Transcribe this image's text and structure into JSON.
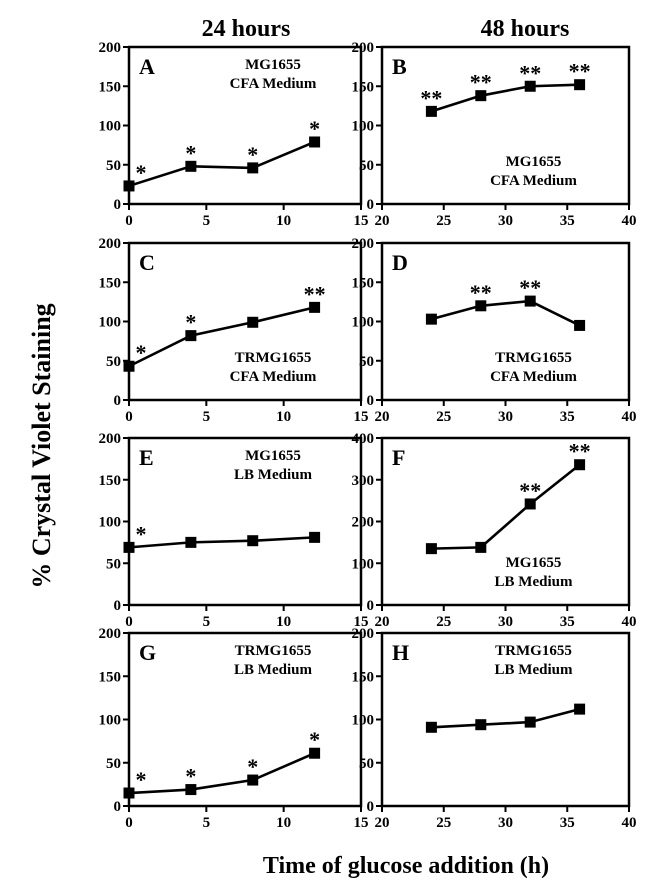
{
  "headers": {
    "left": "24 hours",
    "right": "48 hours"
  },
  "y_axis_label": "% Crystal Violet Staining",
  "x_axis_label": "Time of glucose addition (h)",
  "chart_data": [
    {
      "type": "line",
      "panel": "A",
      "column": "24 hours",
      "strain": "MG1655",
      "medium": "CFA Medium",
      "x": [
        0,
        4,
        8,
        12
      ],
      "y": [
        23,
        48,
        46,
        79
      ],
      "significance": [
        "*",
        "*",
        "*",
        "*"
      ],
      "xlim": [
        0,
        15
      ],
      "ylim": [
        0,
        200
      ],
      "xticks": [
        0,
        5,
        10,
        15
      ],
      "yticks": [
        0,
        50,
        100,
        150,
        200
      ]
    },
    {
      "type": "line",
      "panel": "B",
      "column": "48 hours",
      "strain": "MG1655",
      "medium": "CFA Medium",
      "x": [
        24,
        28,
        32,
        36
      ],
      "y": [
        118,
        138,
        150,
        152
      ],
      "significance": [
        "**",
        "**",
        "**",
        "**"
      ],
      "xlim": [
        20,
        40
      ],
      "ylim": [
        0,
        200
      ],
      "xticks": [
        20,
        25,
        30,
        35,
        40
      ],
      "yticks": [
        0,
        50,
        100,
        150,
        200
      ]
    },
    {
      "type": "line",
      "panel": "C",
      "column": "24 hours",
      "strain": "TRMG1655",
      "medium": "CFA Medium",
      "x": [
        0,
        4,
        8,
        12
      ],
      "y": [
        43,
        82,
        99,
        118
      ],
      "significance": [
        "*",
        "*",
        "",
        "**"
      ],
      "xlim": [
        0,
        15
      ],
      "ylim": [
        0,
        200
      ],
      "xticks": [
        0,
        5,
        10,
        15
      ],
      "yticks": [
        0,
        50,
        100,
        150,
        200
      ]
    },
    {
      "type": "line",
      "panel": "D",
      "column": "48 hours",
      "strain": "TRMG1655",
      "medium": "CFA Medium",
      "x": [
        24,
        28,
        32,
        36
      ],
      "y": [
        103,
        120,
        126,
        95
      ],
      "significance": [
        "",
        "**",
        "**",
        ""
      ],
      "xlim": [
        20,
        40
      ],
      "ylim": [
        0,
        200
      ],
      "xticks": [
        20,
        25,
        30,
        35,
        40
      ],
      "yticks": [
        0,
        50,
        100,
        150,
        200
      ]
    },
    {
      "type": "line",
      "panel": "E",
      "column": "24 hours",
      "strain": "MG1655",
      "medium": "LB Medium",
      "x": [
        0,
        4,
        8,
        12
      ],
      "y": [
        69,
        75,
        77,
        81
      ],
      "significance": [
        "*",
        "",
        "",
        ""
      ],
      "xlim": [
        0,
        15
      ],
      "ylim": [
        0,
        200
      ],
      "xticks": [
        0,
        5,
        10,
        15
      ],
      "yticks": [
        0,
        50,
        100,
        150,
        200
      ]
    },
    {
      "type": "line",
      "panel": "F",
      "column": "48 hours",
      "strain": "MG1655",
      "medium": "LB Medium",
      "x": [
        24,
        28,
        32,
        36
      ],
      "y": [
        135,
        138,
        242,
        336
      ],
      "significance": [
        "",
        "",
        "**",
        "**"
      ],
      "xlim": [
        20,
        40
      ],
      "ylim": [
        0,
        400
      ],
      "xticks": [
        20,
        25,
        30,
        35,
        40
      ],
      "yticks": [
        0,
        100,
        200,
        300,
        400
      ]
    },
    {
      "type": "line",
      "panel": "G",
      "column": "24 hours",
      "strain": "TRMG1655",
      "medium": "LB Medium",
      "x": [
        0,
        4,
        8,
        12
      ],
      "y": [
        15,
        19,
        30,
        61
      ],
      "significance": [
        "*",
        "*",
        "*",
        "*"
      ],
      "xlim": [
        0,
        15
      ],
      "ylim": [
        0,
        200
      ],
      "xticks": [
        0,
        5,
        10,
        15
      ],
      "yticks": [
        0,
        50,
        100,
        150,
        200
      ]
    },
    {
      "type": "line",
      "panel": "H",
      "column": "48 hours",
      "strain": "TRMG1655",
      "medium": "LB Medium",
      "x": [
        24,
        28,
        32,
        36
      ],
      "y": [
        91,
        94,
        97,
        112
      ],
      "significance": [
        "",
        "",
        "",
        ""
      ],
      "xlim": [
        20,
        40
      ],
      "ylim": [
        0,
        200
      ],
      "xticks": [
        20,
        25,
        30,
        35,
        40
      ],
      "yticks": [
        0,
        50,
        100,
        150,
        200
      ]
    }
  ]
}
